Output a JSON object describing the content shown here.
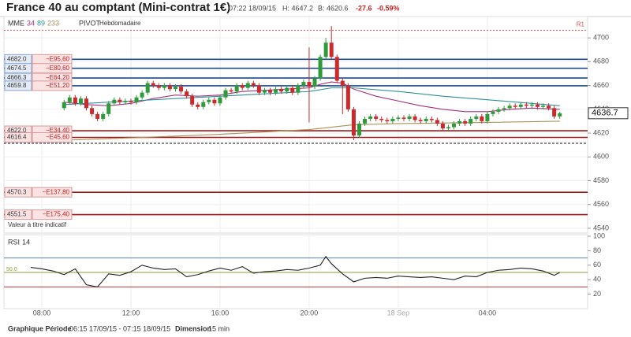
{
  "chart_data": [
    {
      "type": "candlestick",
      "title": "France 40 au comptant (Mini-contrat 1€)",
      "quote": {
        "time": "07:22 18/09/15",
        "high": "H: 4647.2",
        "low": "B: 4620.6",
        "change": "-27.6",
        "change_pct": "-0.59%"
      },
      "indicator_label": "MME",
      "pivot_label": "PIVOT",
      "pivot_period": "Hebdomadaire",
      "note": "Valeur à titre indicatif",
      "footer": {
        "period_label": "Graphique Période",
        "period": "06:15 17/09/15 - 07:15 18/09/15",
        "dimension_label": "Dimension",
        "dimension": "15 min"
      },
      "up_color": "#2f9a3a",
      "down_color": "#cc2a2a",
      "grid": true,
      "xlim": [
        6.3,
        32.5
      ],
      "xticks": [
        {
          "value": 8,
          "label": "08:00"
        },
        {
          "value": 12,
          "label": "12:00"
        },
        {
          "value": 16,
          "label": "16:00"
        },
        {
          "value": 20,
          "label": "20:00"
        },
        {
          "value": 24,
          "label": "18 Sep"
        },
        {
          "value": 28,
          "label": "04:00"
        }
      ],
      "ylim": [
        4538,
        4712
      ],
      "yticks": [
        4540,
        4560,
        4580,
        4600,
        4620,
        4640,
        4660,
        4680,
        4700
      ],
      "x": [
        9,
        9.25,
        9.5,
        9.75,
        10,
        10.25,
        10.5,
        10.75,
        11,
        11.25,
        11.5,
        11.75,
        12,
        12.25,
        12.5,
        12.75,
        13,
        13.25,
        13.5,
        13.75,
        14,
        14.25,
        14.5,
        14.75,
        15,
        15.25,
        15.5,
        15.75,
        16,
        16.25,
        16.5,
        16.75,
        17,
        17.25,
        17.5,
        17.75,
        18,
        18.25,
        18.5,
        18.75,
        19,
        19.25,
        19.5,
        19.75,
        20,
        20.25,
        20.5,
        20.75,
        21,
        21.25,
        21.5,
        21.75,
        22,
        22.25,
        22.5,
        22.75,
        23,
        23.25,
        23.5,
        23.75,
        24,
        24.25,
        24.5,
        24.75,
        25,
        25.25,
        25.5,
        25.75,
        26,
        26.25,
        26.5,
        26.75,
        27,
        27.25,
        27.5,
        27.75,
        28,
        28.25,
        28.5,
        28.75,
        29,
        29.25,
        29.5,
        29.75,
        30,
        30.25,
        30.5,
        30.75,
        31,
        31.25
      ],
      "open": [
        4641,
        4646,
        4650,
        4645,
        4649,
        4641,
        4636,
        4632,
        4636,
        4645,
        4648,
        4646,
        4647,
        4646,
        4650,
        4654,
        4662,
        4660,
        4658,
        4660,
        4657,
        4659,
        4655,
        4651,
        4644,
        4642,
        4646,
        4648,
        4645,
        4650,
        4656,
        4655,
        4660,
        4658,
        4662,
        4660,
        4654,
        4656,
        4654,
        4657,
        4655,
        4658,
        4654,
        4660,
        4663,
        4659,
        4666,
        4684,
        4696,
        4684,
        4664,
        4660,
        4640,
        4618,
        4628,
        4632,
        4634,
        4632,
        4631,
        4630,
        4632,
        4633,
        4632,
        4634,
        4631,
        4630,
        4632,
        4631,
        4628,
        4624,
        4625,
        4628,
        4630,
        4628,
        4632,
        4634,
        4630,
        4636,
        4638,
        4640,
        4641,
        4643,
        4642,
        4644,
        4643,
        4644,
        4642,
        4643,
        4641,
        4634
      ],
      "high": [
        4648,
        4652,
        4652,
        4651,
        4651,
        4643,
        4638,
        4638,
        4647,
        4650,
        4650,
        4649,
        4649,
        4652,
        4656,
        4664,
        4664,
        4662,
        4662,
        4662,
        4661,
        4661,
        4657,
        4653,
        4646,
        4648,
        4650,
        4650,
        4652,
        4658,
        4658,
        4662,
        4662,
        4664,
        4664,
        4662,
        4658,
        4658,
        4659,
        4659,
        4660,
        4660,
        4662,
        4665,
        4692,
        4668,
        4686,
        4700,
        4710,
        4686,
        4666,
        4662,
        4642,
        4630,
        4634,
        4636,
        4636,
        4634,
        4633,
        4634,
        4635,
        4635,
        4636,
        4636,
        4633,
        4634,
        4634,
        4633,
        4630,
        4627,
        4630,
        4632,
        4632,
        4634,
        4636,
        4636,
        4638,
        4640,
        4642,
        4643,
        4645,
        4645,
        4646,
        4646,
        4646,
        4646,
        4645,
        4645,
        4643,
        4638
      ],
      "low": [
        4639,
        4644,
        4643,
        4643,
        4639,
        4634,
        4630,
        4630,
        4634,
        4643,
        4644,
        4644,
        4644,
        4644,
        4648,
        4652,
        4658,
        4656,
        4656,
        4655,
        4655,
        4653,
        4649,
        4642,
        4640,
        4640,
        4644,
        4643,
        4643,
        4648,
        4653,
        4653,
        4656,
        4656,
        4658,
        4652,
        4652,
        4652,
        4652,
        4653,
        4653,
        4652,
        4652,
        4658,
        4629,
        4657,
        4664,
        4682,
        4682,
        4662,
        4636,
        4638,
        4614,
        4616,
        4626,
        4630,
        4630,
        4629,
        4628,
        4628,
        4630,
        4630,
        4630,
        4629,
        4628,
        4628,
        4629,
        4626,
        4622,
        4622,
        4623,
        4626,
        4626,
        4626,
        4630,
        4628,
        4628,
        4634,
        4636,
        4638,
        4639,
        4640,
        4640,
        4641,
        4641,
        4640,
        4640,
        4639,
        4632,
        4632
      ],
      "close": [
        4646,
        4650,
        4645,
        4649,
        4641,
        4636,
        4632,
        4636,
        4645,
        4648,
        4646,
        4647,
        4646,
        4650,
        4654,
        4662,
        4660,
        4658,
        4660,
        4657,
        4659,
        4655,
        4651,
        4644,
        4642,
        4646,
        4648,
        4645,
        4650,
        4656,
        4655,
        4660,
        4658,
        4662,
        4660,
        4654,
        4656,
        4654,
        4657,
        4655,
        4658,
        4654,
        4660,
        4663,
        4659,
        4666,
        4684,
        4696,
        4684,
        4664,
        4660,
        4640,
        4618,
        4628,
        4632,
        4634,
        4632,
        4631,
        4630,
        4632,
        4633,
        4632,
        4634,
        4631,
        4630,
        4632,
        4631,
        4628,
        4624,
        4625,
        4628,
        4630,
        4628,
        4632,
        4634,
        4630,
        4636,
        4638,
        4640,
        4641,
        4643,
        4642,
        4644,
        4643,
        4644,
        4642,
        4643,
        4641,
        4634,
        4636.7
      ],
      "series": [
        {
          "name": "34",
          "color": "#a3337e",
          "x": [
            9,
            10,
            11,
            12,
            13,
            14,
            15,
            16,
            17,
            18,
            19,
            20,
            20.5,
            21,
            21.5,
            22,
            23,
            24,
            25,
            26,
            27,
            28,
            29,
            30,
            31.25
          ],
          "values": [
            4646,
            4644,
            4643,
            4645,
            4649,
            4652,
            4651,
            4652,
            4655,
            4656,
            4657,
            4658,
            4661,
            4663,
            4662,
            4657,
            4651,
            4647,
            4643,
            4640,
            4638,
            4638,
            4640,
            4641,
            4640
          ]
        },
        {
          "name": "89",
          "color": "#2f8f9a",
          "x": [
            9,
            12,
            16,
            20,
            21,
            22,
            24,
            26,
            28,
            30,
            31.25
          ],
          "values": [
            4644,
            4647,
            4651,
            4655,
            4658,
            4658,
            4655,
            4651,
            4648,
            4645,
            4643
          ]
        },
        {
          "name": "233",
          "color": "#a8925a",
          "x": [
            9,
            12,
            16,
            20,
            22,
            24,
            28,
            31.25
          ],
          "values": [
            4614,
            4616,
            4619,
            4623,
            4627,
            4628,
            4629,
            4630
          ]
        }
      ],
      "levels": [
        {
          "value": 4682,
          "label": "4682.0",
          "distance": "−E95,60",
          "color": "#1f4a85"
        },
        {
          "value": 4674.5,
          "label": "4674.5",
          "distance": "−E80,60",
          "color": "#1f4a85"
        },
        {
          "value": 4666.3,
          "label": "4666.3",
          "distance": "−E64,20",
          "color": "#1f4a85"
        },
        {
          "value": 4659.8,
          "label": "4659.8",
          "distance": "−E51,20",
          "color": "#1f4a85"
        },
        {
          "value": 4622,
          "label": "4622.0",
          "distance": "−E34,40",
          "color": "#a31818"
        },
        {
          "value": 4616.4,
          "label": "4616.4",
          "distance": "−E45,60",
          "color": "#a31818"
        },
        {
          "value": 4570.3,
          "label": "4570.3",
          "distance": "−E137,80",
          "color": "#a31818"
        },
        {
          "value": 4551.5,
          "label": "4551.5",
          "distance": "−E175,40",
          "color": "#a31818"
        }
      ],
      "pivots": [
        {
          "label": "R1",
          "value": 4706.5,
          "color": "#e05050"
        }
      ],
      "dashed_level": 4611.4
    },
    {
      "type": "line",
      "title": "RSI",
      "period": "14",
      "ylim": [
        0,
        100
      ],
      "yticks": [
        20,
        40,
        60,
        80,
        100
      ],
      "levels": [
        {
          "value": 70,
          "color": "#5a85b8"
        },
        {
          "value": 50,
          "label": "50.0",
          "color": "#8aa034"
        },
        {
          "value": 30,
          "color": "#c23535"
        }
      ],
      "series": [
        {
          "name": "RSI",
          "color": "#222222",
          "x": [
            7.5,
            8,
            8.5,
            9,
            9.5,
            10,
            10.5,
            11,
            11.5,
            12,
            12.5,
            13,
            13.5,
            14,
            14.5,
            15,
            15.5,
            16,
            16.5,
            17,
            17.5,
            18,
            18.5,
            19,
            19.5,
            20,
            20.5,
            20.75,
            21,
            21.5,
            22,
            22.5,
            23,
            23.5,
            24,
            24.5,
            25,
            25.5,
            26,
            26.5,
            27,
            27.5,
            28,
            28.5,
            29,
            29.5,
            30,
            30.5,
            31,
            31.25
          ],
          "values": [
            57,
            55,
            52,
            47,
            55,
            33,
            30,
            48,
            46,
            51,
            60,
            56,
            54,
            55,
            44,
            47,
            52,
            56,
            53,
            58,
            49,
            51,
            52,
            54,
            53,
            56,
            60,
            72,
            62,
            48,
            37,
            42,
            43,
            42,
            45,
            44,
            43,
            44,
            42,
            40,
            45,
            44,
            50,
            53,
            54,
            56,
            55,
            52,
            46,
            50
          ]
        }
      ]
    }
  ]
}
